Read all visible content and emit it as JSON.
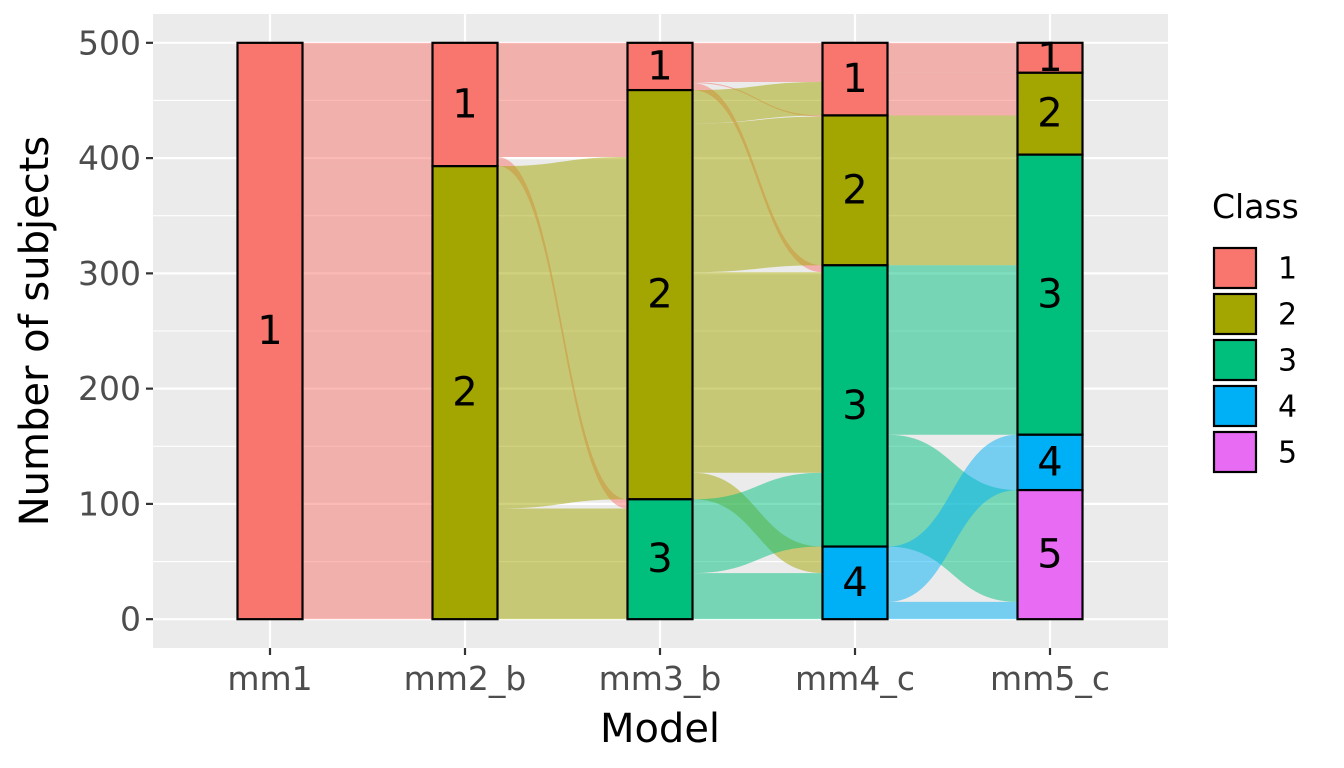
{
  "chart_data": {
    "type": "alluvial",
    "title": "",
    "xlabel": "Model",
    "ylabel": "Number of subjects",
    "ylim": [
      -25,
      525
    ],
    "y_ticks": [
      0,
      100,
      200,
      300,
      400,
      500
    ],
    "categories": [
      "mm1",
      "mm2_b",
      "mm3_b",
      "mm4_c",
      "mm5_c"
    ],
    "grid": true,
    "legend": {
      "title": "Class",
      "placement": "right",
      "entries": [
        "1",
        "2",
        "3",
        "4",
        "5"
      ]
    },
    "class_colors": {
      "1": "#F8766D",
      "2": "#A3A500",
      "3": "#00BF7D",
      "4": "#00B0F6",
      "5": "#E76BF3"
    },
    "strata": {
      "mm1": [
        {
          "class": "1",
          "count": 500
        }
      ],
      "mm2_b": [
        {
          "class": "1",
          "count": 107
        },
        {
          "class": "2",
          "count": 393
        }
      ],
      "mm3_b": [
        {
          "class": "1",
          "count": 41
        },
        {
          "class": "2",
          "count": 355
        },
        {
          "class": "3",
          "count": 104
        }
      ],
      "mm4_c": [
        {
          "class": "1",
          "count": 63
        },
        {
          "class": "2",
          "count": 130
        },
        {
          "class": "3",
          "count": 244
        },
        {
          "class": "4",
          "count": 63
        }
      ],
      "mm5_c": [
        {
          "class": "1",
          "count": 26
        },
        {
          "class": "2",
          "count": 71
        },
        {
          "class": "3",
          "count": 243
        },
        {
          "class": "4",
          "count": 48
        },
        {
          "class": "5",
          "count": 112
        }
      ]
    },
    "flows": [
      {
        "segment": 0,
        "color_class": "1",
        "from": "1",
        "to": "1",
        "count": 107
      },
      {
        "segment": 0,
        "color_class": "1",
        "from": "1",
        "to": "2",
        "count": 393
      },
      {
        "segment": 1,
        "color_class": "1",
        "from": "1",
        "to": "1",
        "count": 41
      },
      {
        "segment": 1,
        "color_class": "1",
        "from": "1",
        "to": "2",
        "count": 58
      },
      {
        "segment": 1,
        "color_class": "1",
        "from": "1",
        "to": "3",
        "count": 8
      },
      {
        "segment": 1,
        "color_class": "2",
        "from": "2",
        "to": "2",
        "count": 297
      },
      {
        "segment": 1,
        "color_class": "2",
        "from": "2",
        "to": "3",
        "count": 96
      },
      {
        "segment": 2,
        "color_class": "1",
        "from": "1",
        "to": "1",
        "count": 34
      },
      {
        "segment": 2,
        "color_class": "1",
        "from": "1",
        "to": "2",
        "count": 1
      },
      {
        "segment": 2,
        "color_class": "1",
        "from": "1",
        "to": "3",
        "count": 6
      },
      {
        "segment": 2,
        "color_class": "2",
        "from": "2",
        "to": "1",
        "count": 29
      },
      {
        "segment": 2,
        "color_class": "2",
        "from": "2",
        "to": "2",
        "count": 129
      },
      {
        "segment": 2,
        "color_class": "2",
        "from": "2",
        "to": "3",
        "count": 174
      },
      {
        "segment": 2,
        "color_class": "2",
        "from": "2",
        "to": "4",
        "count": 23
      },
      {
        "segment": 2,
        "color_class": "3",
        "from": "3",
        "to": "3",
        "count": 64
      },
      {
        "segment": 2,
        "color_class": "3",
        "from": "3",
        "to": "4",
        "count": 40
      },
      {
        "segment": 3,
        "color_class": "1",
        "from": "1",
        "to": "1",
        "count": 26
      },
      {
        "segment": 3,
        "color_class": "1",
        "from": "1",
        "to": "2",
        "count": 37
      },
      {
        "segment": 3,
        "color_class": "2",
        "from": "2",
        "to": "2",
        "count": 34
      },
      {
        "segment": 3,
        "color_class": "2",
        "from": "2",
        "to": "3",
        "count": 96
      },
      {
        "segment": 3,
        "color_class": "3",
        "from": "3",
        "to": "3",
        "count": 147
      },
      {
        "segment": 3,
        "color_class": "3",
        "from": "3",
        "to": "5",
        "count": 97
      },
      {
        "segment": 3,
        "color_class": "4",
        "from": "4",
        "to": "4",
        "count": 48
      },
      {
        "segment": 3,
        "color_class": "4",
        "from": "4",
        "to": "5",
        "count": 15
      }
    ]
  }
}
